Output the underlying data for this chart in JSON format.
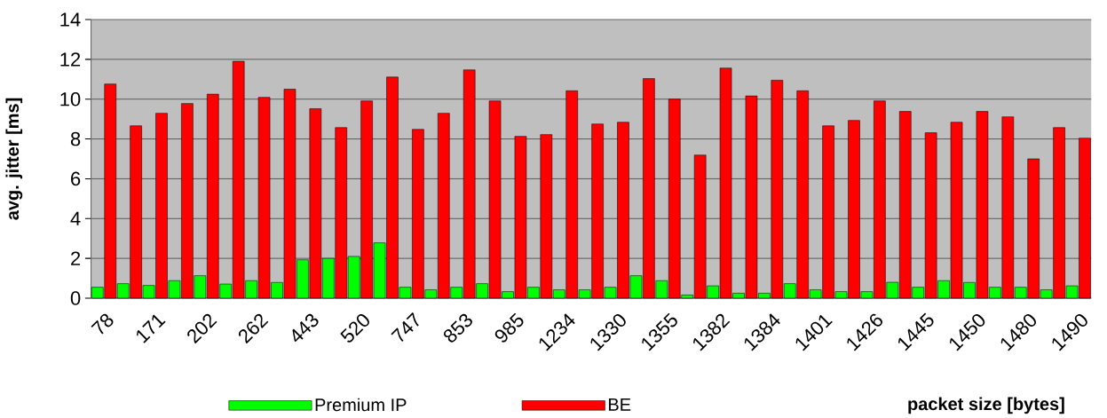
{
  "chart_data": {
    "type": "bar",
    "categories": [
      "78",
      null,
      "171",
      null,
      "202",
      null,
      "262",
      null,
      "443",
      null,
      "520",
      null,
      "747",
      null,
      "853",
      null,
      "985",
      null,
      "1234",
      null,
      "1330",
      null,
      "1355",
      null,
      "1382",
      null,
      "1384",
      null,
      "1401",
      null,
      "1426",
      null,
      "1445",
      null,
      "1450",
      null,
      "1480",
      null,
      "1490"
    ],
    "series": [
      {
        "name": "Premium IP",
        "color": "#00ff00",
        "values": [
          0.55,
          0.73,
          0.64,
          0.88,
          1.13,
          0.71,
          0.88,
          0.79,
          1.93,
          2.0,
          2.1,
          2.78,
          0.55,
          0.42,
          0.55,
          0.73,
          0.33,
          0.55,
          0.42,
          0.42,
          0.55,
          1.13,
          0.88,
          0.16,
          0.62,
          0.25,
          0.25,
          0.73,
          0.42,
          0.33,
          0.33,
          0.8,
          0.55,
          0.88,
          0.79,
          0.55,
          0.55,
          0.42,
          0.62
        ]
      },
      {
        "name": "BE",
        "color": "#ff0000",
        "values": [
          10.76,
          8.66,
          9.29,
          9.78,
          10.25,
          11.9,
          10.09,
          10.5,
          9.52,
          8.57,
          9.91,
          11.11,
          8.48,
          9.29,
          11.47,
          9.91,
          8.13,
          8.22,
          10.42,
          8.75,
          8.84,
          11.03,
          10.0,
          7.19,
          11.56,
          10.16,
          10.95,
          10.42,
          8.66,
          8.93,
          9.91,
          9.38,
          8.31,
          8.84,
          9.38,
          9.11,
          7.0,
          8.57,
          8.04
        ]
      }
    ],
    "xlabel": "packet size [bytes]",
    "ylabel": "avg. jitter [ms]",
    "ylim": [
      0,
      14
    ],
    "yticks": [
      0,
      2,
      4,
      6,
      8,
      10,
      12,
      14
    ],
    "grid": "y",
    "legend": "bottom"
  }
}
